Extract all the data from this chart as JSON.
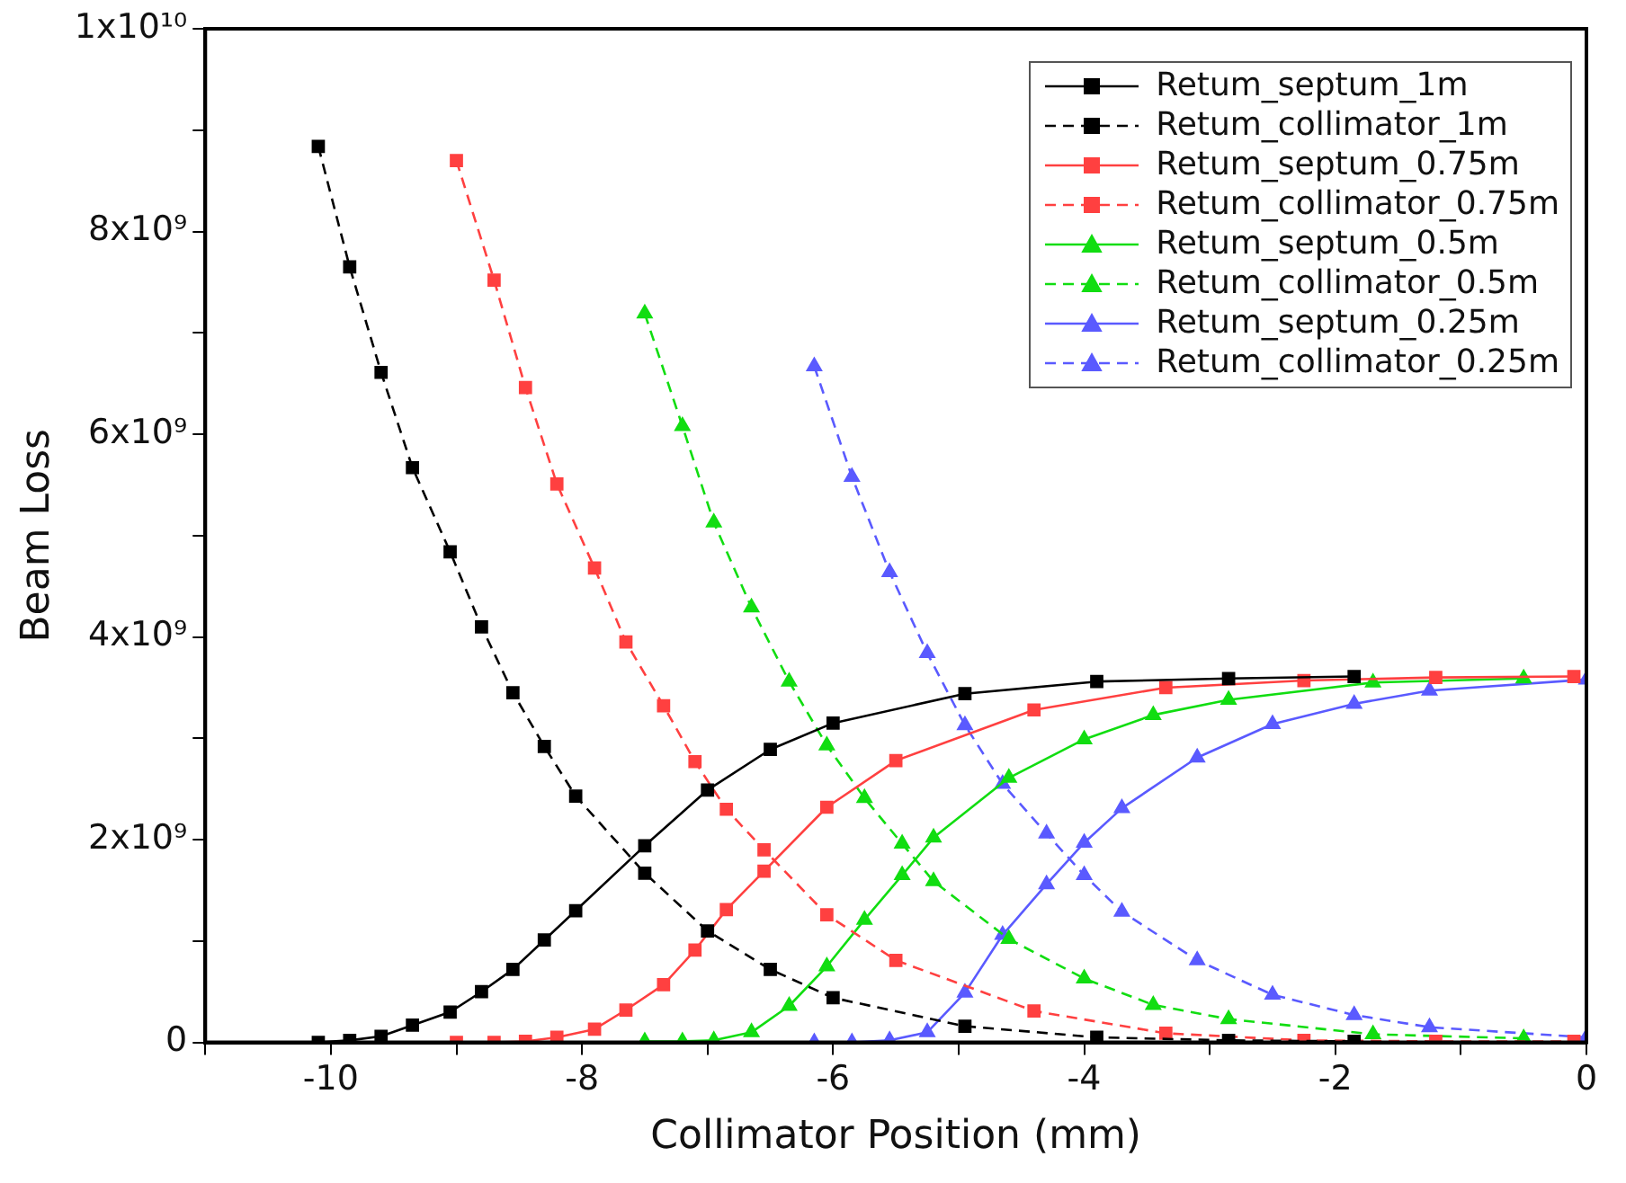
{
  "chart_data": {
    "type": "line",
    "xlabel": "Collimator Position (mm)",
    "ylabel": "Beam Loss",
    "xlim": [
      -11,
      0
    ],
    "ylim": [
      0,
      10000000000
    ],
    "xticks": [
      {
        "value": -11,
        "label": null
      },
      -10,
      {
        "value": -9,
        "label": null
      },
      -8,
      {
        "value": -7,
        "label": null
      },
      -6,
      {
        "value": -5,
        "label": null
      },
      -4,
      {
        "value": -3,
        "label": null
      },
      -2,
      {
        "value": -1,
        "label": null
      },
      0
    ],
    "yticks": [
      0,
      {
        "value": 1000000000,
        "label": null
      },
      {
        "value": 2000000000,
        "label": "2x10⁹"
      },
      {
        "value": 3000000000,
        "label": null
      },
      {
        "value": 4000000000,
        "label": "4x10⁹"
      },
      {
        "value": 5000000000,
        "label": null
      },
      {
        "value": 6000000000,
        "label": "6x10⁹"
      },
      {
        "value": 7000000000,
        "label": null
      },
      {
        "value": 8000000000,
        "label": "8x10⁹"
      },
      {
        "value": 9000000000,
        "label": null
      },
      {
        "value": 10000000000,
        "label": "1x10¹⁰"
      }
    ],
    "grid": false,
    "legend": "top right",
    "series": [
      {
        "name": "Retum_septum_1m",
        "color": "#000000",
        "marker": "square",
        "line_style": "solid",
        "x": [
          -10.1,
          -9.85,
          -9.6,
          -9.35,
          -9.05,
          -8.8,
          -8.55,
          -8.3,
          -8.05,
          -7.5,
          -7.0,
          -6.5,
          -6.0,
          -4.95,
          -3.9,
          -2.85,
          -1.85
        ],
        "values": [
          0,
          20000000,
          60000000,
          170000000,
          300000000,
          500000000,
          720000000,
          1010000000,
          1300000000,
          1940000000,
          2490000000,
          2890000000,
          3150000000,
          3440000000,
          3560000000,
          3590000000,
          3610000000
        ]
      },
      {
        "name": "Retum_collimator_1m",
        "color": "#000000",
        "marker": "square",
        "line_style": "dashed",
        "x": [
          -10.1,
          -9.85,
          -9.6,
          -9.35,
          -9.05,
          -8.8,
          -8.55,
          -8.3,
          -8.05,
          -7.5,
          -7.0,
          -6.5,
          -6.0,
          -4.95,
          -3.9,
          -2.85,
          -1.85
        ],
        "values": [
          8840000000,
          7650000000,
          6610000000,
          5670000000,
          4840000000,
          4100000000,
          3450000000,
          2920000000,
          2430000000,
          1670000000,
          1100000000,
          720000000,
          440000000,
          160000000,
          50000000,
          20000000,
          10000000
        ]
      },
      {
        "name": "Retum_septum_0.75m",
        "color": "#ff4040",
        "marker": "square",
        "line_style": "solid",
        "x": [
          -9.0,
          -8.7,
          -8.45,
          -8.2,
          -7.9,
          -7.65,
          -7.35,
          -7.1,
          -6.85,
          -6.55,
          -6.05,
          -5.5,
          -4.4,
          -3.35,
          -2.25,
          -1.2,
          -0.1
        ],
        "values": [
          0,
          0,
          10000000,
          50000000,
          130000000,
          320000000,
          570000000,
          910000000,
          1310000000,
          1690000000,
          2320000000,
          2780000000,
          3280000000,
          3500000000,
          3570000000,
          3600000000,
          3610000000
        ]
      },
      {
        "name": "Retum_collimator_0.75m",
        "color": "#ff4040",
        "marker": "square",
        "line_style": "dashed",
        "x": [
          -9.0,
          -8.7,
          -8.45,
          -8.2,
          -7.9,
          -7.65,
          -7.35,
          -7.1,
          -6.85,
          -6.55,
          -6.05,
          -5.5,
          -4.4,
          -3.35,
          -2.25,
          -1.2,
          -0.1
        ],
        "values": [
          8700000000,
          7520000000,
          6460000000,
          5510000000,
          4680000000,
          3950000000,
          3320000000,
          2770000000,
          2300000000,
          1900000000,
          1260000000,
          810000000,
          310000000,
          90000000,
          20000000,
          10000000,
          10000000
        ]
      },
      {
        "name": "Retum_septum_0.5m",
        "color": "#11dd11",
        "marker": "triangle",
        "line_style": "solid",
        "x": [
          -7.5,
          -7.2,
          -6.95,
          -6.65,
          -6.35,
          -6.05,
          -5.75,
          -5.45,
          -5.2,
          -4.6,
          -4.0,
          -3.45,
          -2.85,
          -1.7,
          -0.5
        ],
        "values": [
          10000000,
          10000000,
          20000000,
          100000000,
          360000000,
          750000000,
          1210000000,
          1650000000,
          2020000000,
          2610000000,
          2990000000,
          3230000000,
          3380000000,
          3550000000,
          3590000000
        ]
      },
      {
        "name": "Retum_collimator_0.5m",
        "color": "#11dd11",
        "marker": "triangle",
        "line_style": "dashed",
        "x": [
          -7.5,
          -7.2,
          -6.95,
          -6.65,
          -6.35,
          -6.05,
          -5.75,
          -5.45,
          -5.2,
          -4.6,
          -4.0,
          -3.45,
          -2.85,
          -1.7,
          -0.5
        ],
        "values": [
          7190000000,
          6080000000,
          5130000000,
          4290000000,
          3560000000,
          2930000000,
          2410000000,
          1960000000,
          1590000000,
          1020000000,
          630000000,
          370000000,
          230000000,
          80000000,
          40000000
        ]
      },
      {
        "name": "Retum_septum_0.25m",
        "color": "#5a5aff",
        "marker": "triangle",
        "line_style": "solid",
        "x": [
          -6.15,
          -5.85,
          -5.55,
          -5.25,
          -4.95,
          -4.65,
          -4.3,
          -4.0,
          -3.7,
          -3.1,
          -2.5,
          -1.85,
          -1.25,
          0
        ],
        "values": [
          0,
          0,
          20000000,
          100000000,
          490000000,
          1060000000,
          1560000000,
          1970000000,
          2310000000,
          2810000000,
          3140000000,
          3340000000,
          3470000000,
          3580000000
        ]
      },
      {
        "name": "Retum_collimator_0.25m",
        "color": "#5a5aff",
        "marker": "triangle",
        "line_style": "dashed",
        "x": [
          -6.15,
          -5.85,
          -5.55,
          -5.25,
          -4.95,
          -4.65,
          -4.3,
          -4.0,
          -3.7,
          -3.1,
          -2.5,
          -1.85,
          -1.25,
          0
        ],
        "values": [
          6670000000,
          5580000000,
          4640000000,
          3840000000,
          3130000000,
          2550000000,
          2060000000,
          1650000000,
          1290000000,
          810000000,
          470000000,
          270000000,
          150000000,
          50000000
        ]
      }
    ]
  }
}
